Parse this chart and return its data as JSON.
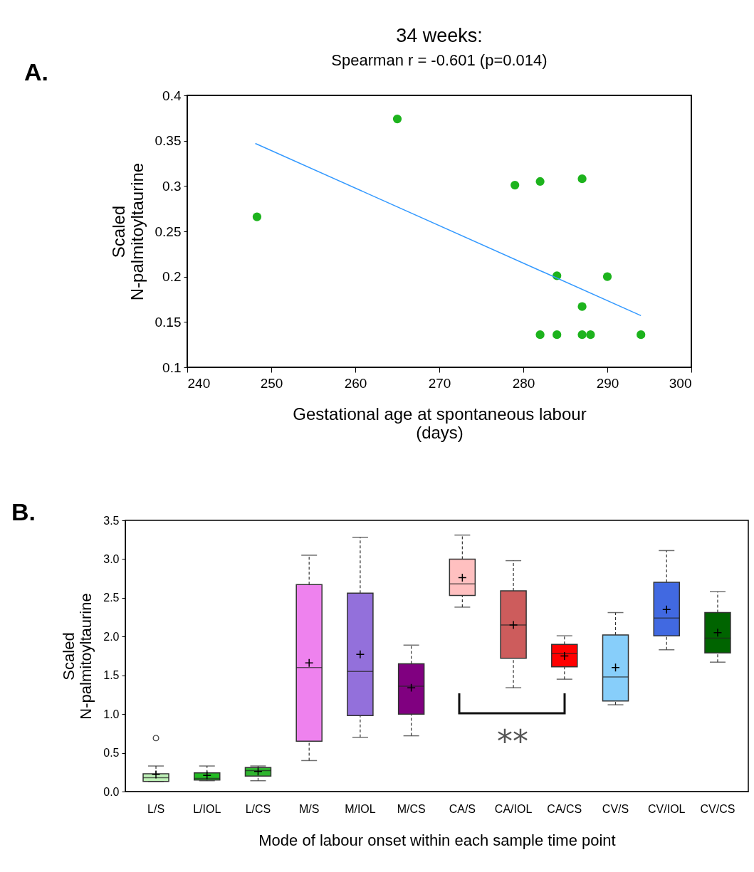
{
  "chart_data": [
    {
      "type": "scatter",
      "title": "34 weeks:",
      "subtitle": "Spearman r = -0.601 (p=0.014)",
      "xlabel": "Gestational age at spontaneous labour (days)",
      "ylabel": "Scaled N-palmitoyltaurine",
      "annotations": [
        "A."
      ],
      "series": [
        {
          "type": "scatter",
          "marker": "circle",
          "color": "#1db31d",
          "x": [
            248.3,
            265.0,
            279.0,
            282.0,
            287.0,
            284.0,
            290.0,
            287.0,
            282.0,
            284.0,
            287.0,
            288.0,
            294.0
          ],
          "values": [
            0.266,
            0.374,
            0.301,
            0.305,
            0.308,
            0.201,
            0.2,
            0.167,
            0.136,
            0.136,
            0.136,
            0.136,
            0.136
          ]
        },
        {
          "type": "line",
          "marker": "none",
          "color": "#3399ff",
          "x": [
            248.1,
            294.0
          ],
          "values": [
            0.347,
            0.157
          ]
        }
      ],
      "xlim": [
        240,
        300
      ],
      "xticks": [
        240,
        250,
        260,
        270,
        280,
        290,
        300
      ],
      "ylim": [
        0.1,
        0.4
      ],
      "yticks": [
        0.1,
        0.15,
        0.2,
        0.25,
        0.3,
        0.35,
        0.4
      ],
      "grid": false,
      "legend": false
    },
    {
      "type": "box",
      "xlabel": "Mode of labour onset within each sample time point",
      "ylabel": "Scaled N-palmitoyltaurine",
      "annotations": [
        "B.",
        "**"
      ],
      "categories": [
        "L/S",
        "L/IOL",
        "L/CS",
        "M/S",
        "M/IOL",
        "M/CS",
        "CA/S",
        "CA/IOL",
        "CA/CS",
        "CV/S",
        "CV/IOL",
        "CV/CS"
      ],
      "colors": [
        "#bff2b8",
        "#22bb22",
        "#2fb52f",
        "#ee82ee",
        "#9370db",
        "#800080",
        "#ffc0c0",
        "#cd5c5c",
        "#ff0000",
        "#87cefa",
        "#4169e1",
        "#006400"
      ],
      "boxes": [
        {
          "low": 0.13,
          "q1": 0.13,
          "median": 0.18,
          "q3": 0.23,
          "high": 0.33,
          "mean": 0.22,
          "outliers": [
            0.69
          ]
        },
        {
          "low": 0.14,
          "q1": 0.15,
          "median": 0.17,
          "q3": 0.24,
          "high": 0.33,
          "mean": 0.21
        },
        {
          "low": 0.14,
          "q1": 0.2,
          "median": 0.27,
          "q3": 0.31,
          "high": 0.33,
          "mean": 0.26
        },
        {
          "low": 0.4,
          "q1": 0.65,
          "median": 1.6,
          "q3": 2.67,
          "high": 3.05,
          "mean": 1.66
        },
        {
          "low": 0.7,
          "q1": 0.98,
          "median": 1.55,
          "q3": 2.56,
          "high": 3.28,
          "mean": 1.77
        },
        {
          "low": 0.72,
          "q1": 1.0,
          "median": 1.36,
          "q3": 1.65,
          "high": 1.89,
          "mean": 1.34
        },
        {
          "low": 2.38,
          "q1": 2.53,
          "median": 2.68,
          "q3": 3.0,
          "high": 3.31,
          "mean": 2.76
        },
        {
          "low": 1.34,
          "q1": 1.72,
          "median": 2.15,
          "q3": 2.59,
          "high": 2.98,
          "mean": 2.15
        },
        {
          "low": 1.45,
          "q1": 1.61,
          "median": 1.78,
          "q3": 1.9,
          "high": 2.01,
          "mean": 1.75
        },
        {
          "low": 1.12,
          "q1": 1.17,
          "median": 1.48,
          "q3": 2.02,
          "high": 2.31,
          "mean": 1.6
        },
        {
          "low": 1.83,
          "q1": 2.01,
          "median": 2.24,
          "q3": 2.7,
          "high": 3.11,
          "mean": 2.35
        },
        {
          "low": 1.67,
          "q1": 1.79,
          "median": 1.98,
          "q3": 2.31,
          "high": 2.58,
          "mean": 2.05
        }
      ],
      "ylim": [
        0,
        3.5
      ],
      "yticks": [
        {
          "value": 0,
          "label": "0.0"
        },
        {
          "value": 0.5,
          "label": "0.5"
        },
        {
          "value": 1,
          "label": "1.0"
        },
        {
          "value": 1.5,
          "label": "1.5"
        },
        {
          "value": 2,
          "label": "2.0"
        },
        {
          "value": 2.5,
          "label": "2.5"
        },
        {
          "value": 3,
          "label": "3.0"
        },
        {
          "value": 3.5,
          "label": "3.5"
        }
      ],
      "grid": false,
      "legend": false
    }
  ]
}
